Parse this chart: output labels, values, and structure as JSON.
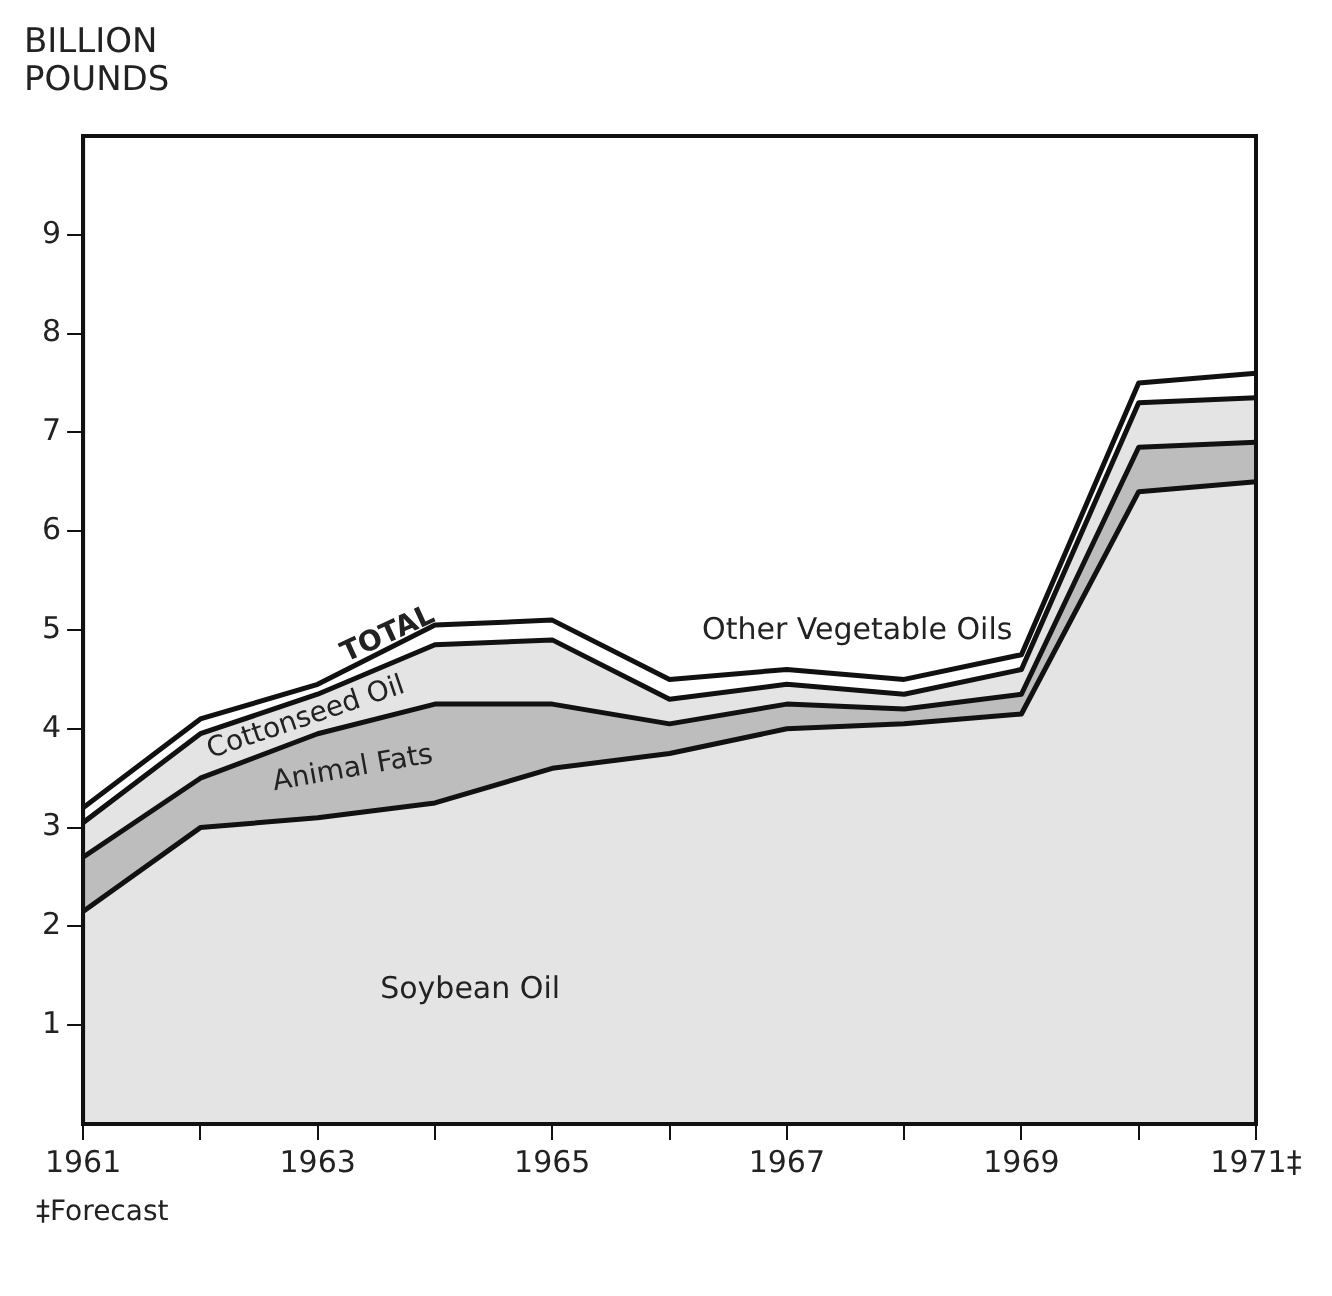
{
  "chart_data": {
    "type": "area",
    "stacked": true,
    "ylabel": "BILLION POUNDS",
    "x": [
      1961,
      1962,
      1963,
      1964,
      1965,
      1966,
      1967,
      1968,
      1969,
      1970,
      1971
    ],
    "series": [
      {
        "name": "Soybean Oil",
        "color": "#e4e4e4",
        "values": [
          2.15,
          3.0,
          3.1,
          3.25,
          3.6,
          3.75,
          4.0,
          4.05,
          4.15,
          6.4,
          6.5
        ]
      },
      {
        "name": "Animal Fats",
        "color": "#bdbdbd",
        "values": [
          0.55,
          0.5,
          0.85,
          1.0,
          0.65,
          0.3,
          0.25,
          0.15,
          0.2,
          0.45,
          0.4
        ]
      },
      {
        "name": "Cottonseed Oil",
        "color": "#e4e4e4",
        "values": [
          0.35,
          0.45,
          0.4,
          0.6,
          0.65,
          0.25,
          0.2,
          0.15,
          0.25,
          0.45,
          0.45
        ]
      },
      {
        "name": "Other Vegetable Oils",
        "color": "#ffffff",
        "values": [
          0.15,
          0.15,
          0.1,
          0.2,
          0.2,
          0.2,
          0.15,
          0.15,
          0.15,
          0.2,
          0.25
        ]
      }
    ],
    "xlim": [
      1961,
      1971
    ],
    "xticks": [
      1961,
      {
        "value": 1962,
        "label": null
      },
      1963,
      {
        "value": 1964,
        "label": null
      },
      1965,
      {
        "value": 1966,
        "label": null
      },
      1967,
      {
        "value": 1968,
        "label": null
      },
      1969,
      {
        "value": 1970,
        "label": null
      },
      {
        "value": 1971,
        "label": "1971‡"
      }
    ],
    "ylim": [
      0,
      10
    ],
    "yticks": [
      1,
      2,
      3,
      4,
      5,
      6,
      7,
      8,
      9
    ],
    "grid": false,
    "legend": false,
    "annotations": [
      {
        "text": "TOTAL",
        "x": 1963.6,
        "y": 4.95
      },
      "‡Forecast"
    ]
  }
}
